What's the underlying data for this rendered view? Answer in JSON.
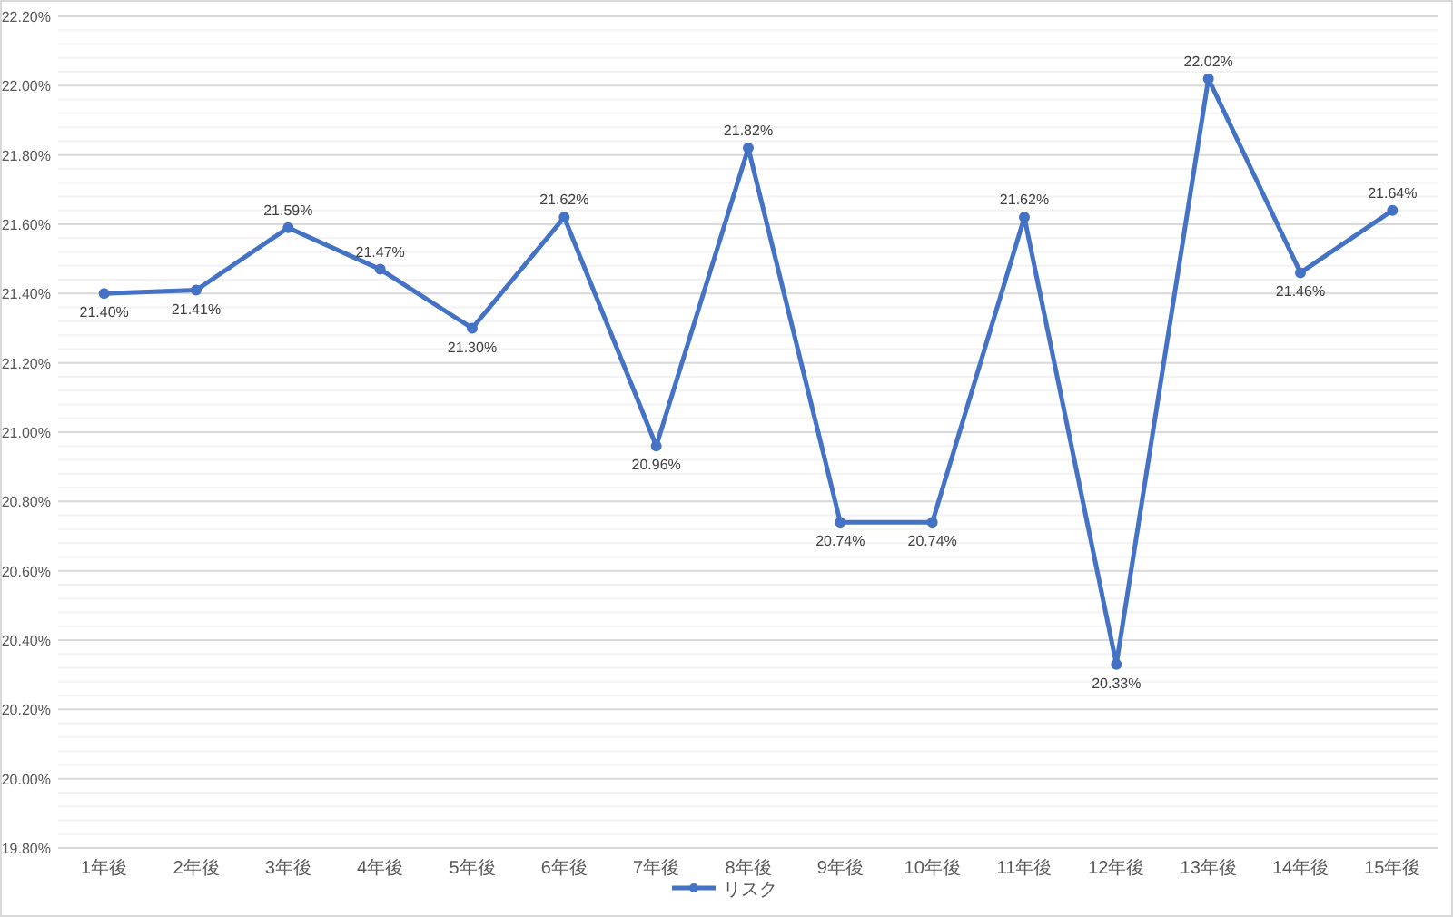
{
  "chart_data": {
    "type": "line",
    "categories": [
      "1年後",
      "2年後",
      "3年後",
      "4年後",
      "5年後",
      "6年後",
      "7年後",
      "8年後",
      "9年後",
      "10年後",
      "11年後",
      "12年後",
      "13年後",
      "14年後",
      "15年後"
    ],
    "series": [
      {
        "name": "リスク",
        "color": "#4472c4",
        "values": [
          21.4,
          21.41,
          21.59,
          21.47,
          21.3,
          21.62,
          20.96,
          21.82,
          20.74,
          20.74,
          21.62,
          20.33,
          22.02,
          21.46,
          21.64
        ],
        "value_labels": [
          "21.40%",
          "21.41%",
          "21.59%",
          "21.47%",
          "21.30%",
          "21.62%",
          "20.96%",
          "21.82%",
          "20.74%",
          "20.74%",
          "21.62%",
          "20.33%",
          "22.02%",
          "21.46%",
          "21.64%"
        ]
      }
    ],
    "ylim": [
      19.8,
      22.2
    ],
    "yticks": [
      {
        "value": 19.8,
        "label": "19.80%"
      },
      {
        "value": 20.0,
        "label": "20.00%"
      },
      {
        "value": 20.2,
        "label": "20.20%"
      },
      {
        "value": 20.4,
        "label": "20.40%"
      },
      {
        "value": 20.6,
        "label": "20.60%"
      },
      {
        "value": 20.8,
        "label": "20.80%"
      },
      {
        "value": 21.0,
        "label": "21.00%"
      },
      {
        "value": 21.2,
        "label": "21.20%"
      },
      {
        "value": 21.4,
        "label": "21.40%"
      },
      {
        "value": 21.6,
        "label": "21.60%"
      },
      {
        "value": 21.8,
        "label": "21.80%"
      },
      {
        "value": 22.0,
        "label": "22.00%"
      },
      {
        "value": 22.2,
        "label": "22.20%"
      }
    ],
    "grid": "y",
    "legend": "bottom",
    "marker": "circle",
    "line_style": "solid"
  }
}
